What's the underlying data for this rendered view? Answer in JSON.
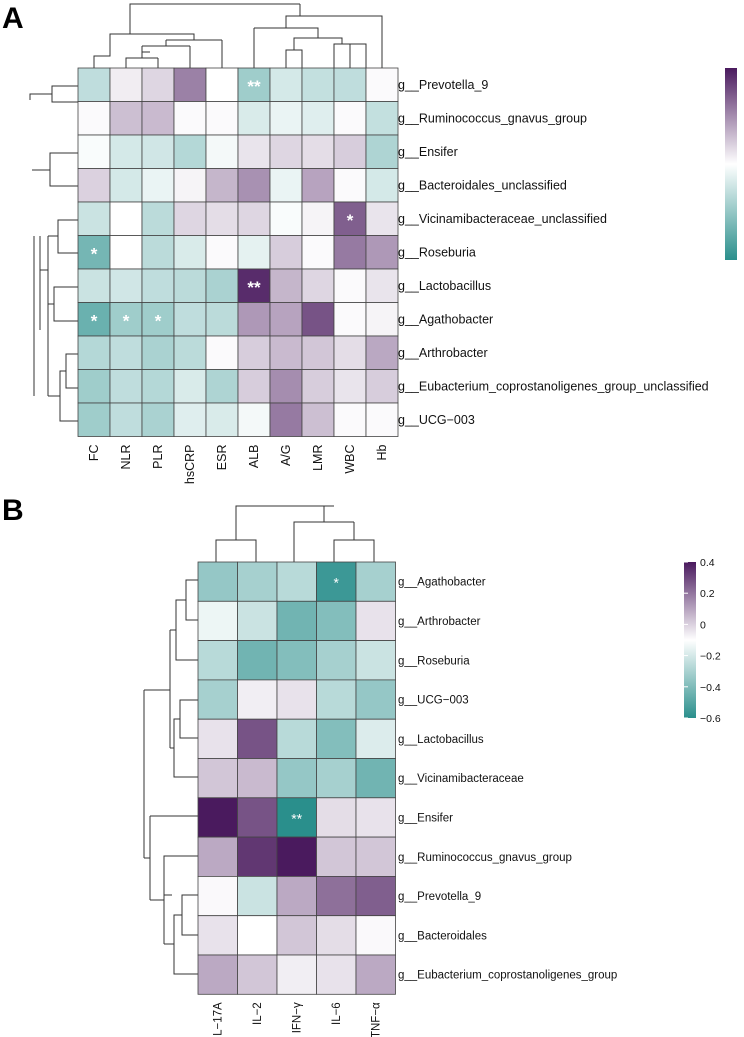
{
  "colors": {
    "low": "#2a8f8c",
    "mid": "#ffffff",
    "high": "#4a1a5e"
  },
  "chart_data": [
    {
      "panel": "A",
      "type": "heatmap",
      "columns": [
        "FC",
        "NLR",
        "PLR",
        "hsCRP",
        "ESR",
        "ALB",
        "A/G",
        "LMR",
        "WBC",
        "Hb"
      ],
      "rows": [
        "g__Prevotella_9",
        "g__Ruminococcus_gnavus_group",
        "g__Ensifer",
        "g__Bacteroidales_unclassified",
        "g__Vicinamibacteraceae_unclassified",
        "g__Roseburia",
        "g__Lactobacillus",
        "g__Agathobacter",
        "g__Arthrobacter",
        "g__Eubacterium_coprostanoligenes_group_unclassified",
        "g__UCG−003"
      ],
      "values": [
        [
          -0.3,
          0.08,
          0.18,
          0.55,
          0.0,
          -0.45,
          -0.2,
          -0.28,
          -0.3,
          0.02
        ],
        [
          0.02,
          0.28,
          0.3,
          0.02,
          0.02,
          -0.18,
          -0.1,
          -0.15,
          0.02,
          -0.28
        ],
        [
          -0.03,
          -0.2,
          -0.22,
          -0.35,
          -0.05,
          0.12,
          0.18,
          0.15,
          0.22,
          -0.38
        ],
        [
          0.2,
          -0.2,
          -0.1,
          0.05,
          0.32,
          0.48,
          -0.1,
          0.4,
          0.02,
          -0.2
        ],
        [
          -0.25,
          0.0,
          -0.32,
          0.18,
          0.15,
          0.18,
          -0.03,
          0.05,
          0.7,
          0.12
        ],
        [
          -0.65,
          0.0,
          -0.32,
          -0.18,
          0.02,
          -0.12,
          0.22,
          0.02,
          0.58,
          0.45
        ],
        [
          -0.25,
          -0.22,
          -0.3,
          -0.32,
          -0.4,
          0.92,
          0.32,
          0.18,
          0.02,
          0.12
        ],
        [
          -0.7,
          -0.45,
          -0.45,
          -0.3,
          -0.32,
          0.45,
          0.4,
          0.75,
          0.02,
          0.05
        ],
        [
          -0.35,
          -0.3,
          -0.4,
          -0.32,
          0.02,
          0.22,
          0.3,
          0.25,
          0.15,
          0.38
        ],
        [
          -0.45,
          -0.3,
          -0.35,
          -0.18,
          -0.38,
          0.22,
          0.5,
          0.22,
          0.12,
          0.22
        ],
        [
          -0.45,
          -0.3,
          -0.4,
          -0.15,
          -0.18,
          -0.05,
          0.58,
          0.28,
          0.02,
          0.02
        ]
      ],
      "significance": [
        [
          "",
          "",
          "",
          "",
          "",
          "**",
          "",
          "",
          "",
          ""
        ],
        [
          "",
          "",
          "",
          "",
          "",
          "",
          "",
          "",
          "",
          ""
        ],
        [
          "",
          "",
          "",
          "",
          "",
          "",
          "",
          "",
          "",
          ""
        ],
        [
          "",
          "",
          "",
          "",
          "",
          "",
          "",
          "",
          "",
          ""
        ],
        [
          "",
          "",
          "",
          "",
          "",
          "",
          "",
          "",
          "*",
          ""
        ],
        [
          "*",
          "",
          "",
          "",
          "",
          "",
          "",
          "",
          "",
          ""
        ],
        [
          "",
          "",
          "",
          "",
          "",
          "**",
          "",
          "",
          "",
          ""
        ],
        [
          "*",
          "*",
          "*",
          "",
          "",
          "",
          "",
          "",
          "",
          ""
        ],
        [
          "",
          "",
          "",
          "",
          "",
          "",
          "",
          "",
          "",
          ""
        ],
        [
          "",
          "",
          "",
          "",
          "",
          "",
          "",
          "",
          "",
          ""
        ],
        [
          "",
          "",
          "",
          "",
          "",
          "",
          "",
          "",
          "",
          ""
        ]
      ],
      "vmin": -1,
      "vmax": 1,
      "legend_ticks": []
    },
    {
      "panel": "B",
      "type": "heatmap",
      "columns": [
        "IL−17A",
        "IL−2",
        "IFN−γ",
        "IL−6",
        "TNF−α"
      ],
      "rows": [
        "g__Agathobacter",
        "g__Arthrobacter",
        "g__Roseburia",
        "g__UCG−003",
        "g__Lactobacillus",
        "g__Vicinamibacteraceae",
        "g__Ensifer",
        "g__Ruminococcus_gnavus_group",
        "g__Prevotella_9",
        "g__Bacteroidales",
        "g__Eubacterium_coprostanoligenes_group"
      ],
      "values": [
        [
          -0.3,
          -0.25,
          -0.2,
          -0.55,
          -0.25
        ],
        [
          -0.05,
          -0.15,
          -0.4,
          -0.35,
          0.05
        ],
        [
          -0.2,
          -0.4,
          -0.35,
          -0.25,
          -0.15
        ],
        [
          -0.25,
          0.03,
          0.05,
          -0.2,
          -0.3
        ],
        [
          0.05,
          0.3,
          -0.2,
          -0.35,
          -0.1
        ],
        [
          0.1,
          0.12,
          -0.3,
          -0.25,
          -0.4
        ],
        [
          0.42,
          0.3,
          -0.6,
          0.06,
          0.05
        ],
        [
          0.15,
          0.35,
          0.45,
          0.1,
          0.1
        ],
        [
          0.01,
          -0.15,
          0.15,
          0.25,
          0.28
        ],
        [
          0.05,
          0.0,
          0.1,
          0.06,
          0.01
        ],
        [
          0.15,
          0.1,
          0.03,
          0.05,
          0.15
        ]
      ],
      "significance": [
        [
          "",
          "",
          "",
          "*",
          ""
        ],
        [
          "",
          "",
          "",
          "",
          ""
        ],
        [
          "",
          "",
          "",
          "",
          ""
        ],
        [
          "",
          "",
          "",
          "",
          ""
        ],
        [
          "",
          "",
          "",
          "",
          ""
        ],
        [
          "",
          "",
          "",
          "",
          ""
        ],
        [
          "",
          "",
          "**",
          "",
          ""
        ],
        [
          "",
          "",
          "",
          "",
          ""
        ],
        [
          "",
          "",
          "",
          "",
          ""
        ],
        [
          "",
          "",
          "",
          "",
          ""
        ],
        [
          "",
          "",
          "",
          "",
          ""
        ]
      ],
      "vmin": -0.6,
      "vmax": 0.4,
      "legend_ticks": [
        {
          "value": 0.4,
          "label": "0.4"
        },
        {
          "value": 0.2,
          "label": "0.2"
        },
        {
          "value": 0,
          "label": "0"
        },
        {
          "value": -0.2,
          "label": "−0.2"
        },
        {
          "value": -0.4,
          "label": "−0.4"
        },
        {
          "value": -0.6,
          "label": "−0.6"
        }
      ]
    }
  ]
}
